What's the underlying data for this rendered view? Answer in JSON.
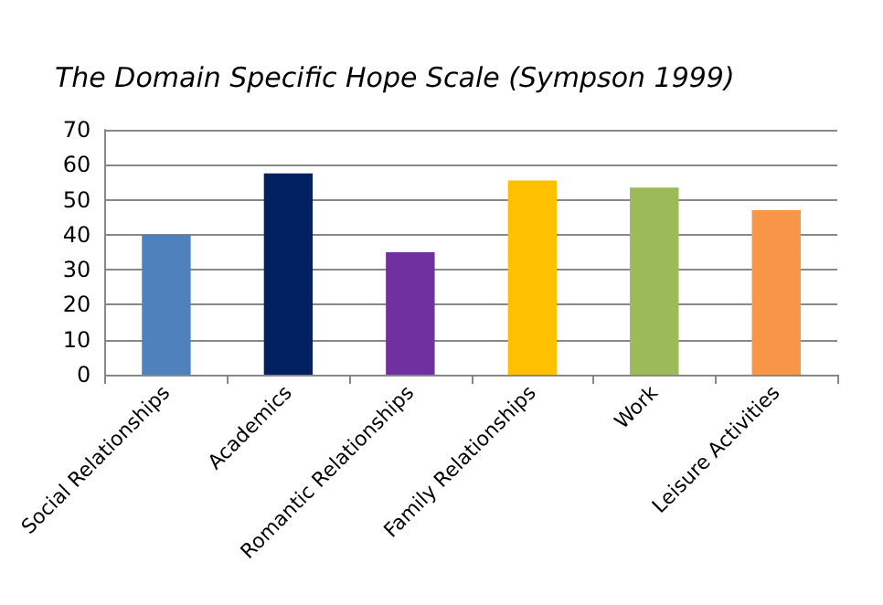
{
  "chart_data": {
    "type": "bar",
    "title": "The Domain Specific Hope Scale (Sympson 1999)",
    "categories": [
      "Social Relationships",
      "Academics",
      "Romantic Relationships",
      "Family Relationships",
      "Work",
      "Leisure Activities"
    ],
    "values": [
      40,
      57.5,
      35,
      55.5,
      53.5,
      47
    ],
    "colors": [
      "#4f81bd",
      "#002060",
      "#7030a0",
      "#ffc000",
      "#9bbb59",
      "#f79646"
    ],
    "ylim": [
      0,
      70
    ],
    "yticks": [
      0,
      10,
      20,
      30,
      40,
      50,
      60,
      70
    ],
    "grid": "y"
  }
}
